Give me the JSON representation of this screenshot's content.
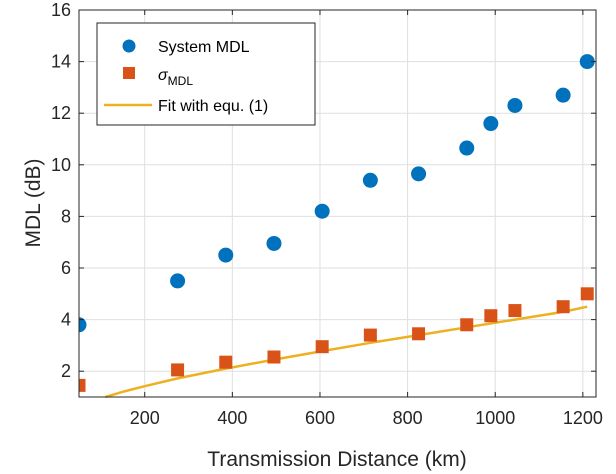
{
  "chart_data": {
    "type": "scatter",
    "xlabel": "Transmission Distance (km)",
    "ylabel": "MDL (dB)",
    "xlim": [
      50,
      1230
    ],
    "ylim": [
      1,
      16
    ],
    "x_ticks": [
      200,
      400,
      600,
      800,
      1000,
      1200
    ],
    "y_ticks": [
      2,
      4,
      6,
      8,
      10,
      12,
      14,
      16
    ],
    "x_tick_labels": [
      "200",
      "400",
      "600",
      "800",
      "1000",
      "1200"
    ],
    "y_tick_labels": [
      "2",
      "4",
      "6",
      "8",
      "10",
      "12",
      "14",
      "16"
    ],
    "grid": true,
    "legend_position": "top-left",
    "series": [
      {
        "name": "System MDL",
        "marker": "circle",
        "color": "#0072BD",
        "x": [
          50,
          275,
          385,
          495,
          605,
          715,
          825,
          935,
          990,
          1045,
          1155,
          1210
        ],
        "y": [
          3.8,
          5.5,
          6.5,
          6.95,
          8.2,
          9.4,
          9.65,
          10.65,
          11.6,
          12.3,
          12.7,
          14.0
        ]
      },
      {
        "name_base": "σ",
        "name_sub": "MDL",
        "marker": "square",
        "color": "#D95319",
        "x": [
          50,
          275,
          385,
          495,
          605,
          715,
          825,
          935,
          990,
          1045,
          1155,
          1210
        ],
        "y": [
          1.45,
          2.05,
          2.35,
          2.55,
          2.95,
          3.4,
          3.45,
          3.8,
          4.15,
          4.35,
          4.5,
          5.0
        ]
      },
      {
        "name": "Fit with equ. (1)",
        "marker": "line",
        "color": "#EDB120",
        "x": [
          110,
          150,
          200,
          275,
          385,
          495,
          605,
          715,
          825,
          935,
          1045,
          1155,
          1210
        ],
        "y": [
          1.0,
          1.2,
          1.42,
          1.72,
          2.1,
          2.45,
          2.78,
          3.1,
          3.4,
          3.7,
          4.0,
          4.3,
          4.5
        ]
      }
    ]
  }
}
